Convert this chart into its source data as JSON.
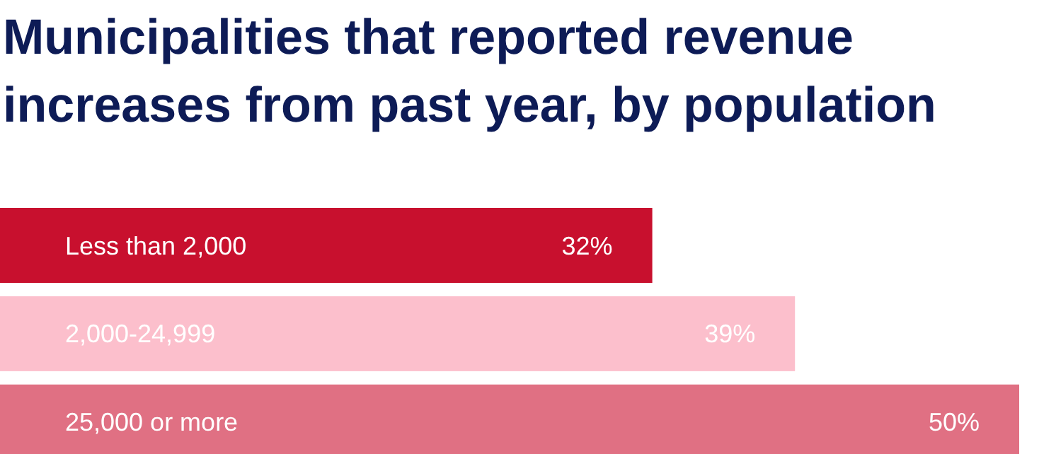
{
  "chart_data": {
    "type": "bar",
    "orientation": "horizontal",
    "title": "Municipalities that reported revenue increases from past year, by population",
    "categories": [
      "Less than 2,000",
      "2,000-24,999",
      "25,000 or more"
    ],
    "values": [
      32,
      39,
      50
    ],
    "colors": [
      "#c8102e",
      "#fcbfcc",
      "#e07083"
    ],
    "value_labels": [
      "32%",
      "39%",
      "50%"
    ]
  }
}
